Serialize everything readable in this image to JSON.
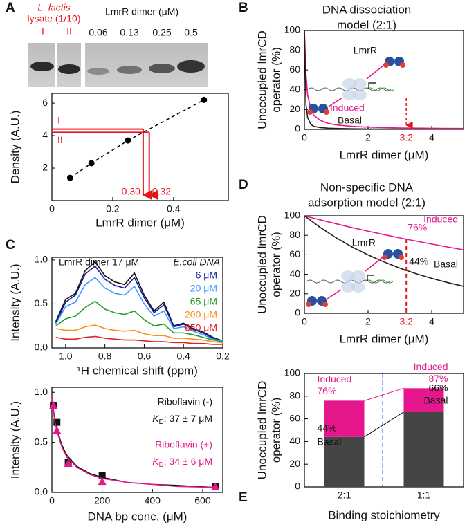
{
  "gel": {
    "sample_label": [
      "L. lactis",
      "lysate (1/10)"
    ],
    "lanes": [
      "I",
      "II"
    ],
    "title": "LmrR dimer (μM)",
    "concentrations": [
      "0.06",
      "0.13",
      "0.25",
      "0.5"
    ]
  },
  "chart_data": [
    {
      "panel": "A",
      "type": "scatter",
      "x": [
        0.06,
        0.13,
        0.25,
        0.5
      ],
      "values": [
        1.4,
        2.3,
        3.7,
        6.2
      ],
      "color": "#000000",
      "fit_line": true,
      "xlim": [
        0,
        0.58
      ],
      "ylim": [
        0,
        6.6
      ],
      "xticks": [
        0,
        0.2,
        0.4
      ],
      "yticks": [
        2,
        4,
        6
      ],
      "x_label": "LmrR dimer (μM)",
      "y_label": "Density (A.U.)",
      "reference_color": "#e8141c",
      "reference_lines": [
        {
          "label": "I",
          "value": 4.4,
          "x_value": 0.3,
          "x_label": "0.30"
        },
        {
          "label": "II",
          "value": 4.2,
          "x_value": 0.32,
          "x_label": "0.32"
        }
      ]
    },
    {
      "panel": "B",
      "type": "line",
      "title": [
        "DNA dissociation",
        "model (2:1)"
      ],
      "x": [
        0,
        0.05,
        0.1,
        0.2,
        0.3,
        0.5,
        0.75,
        1,
        1.5,
        2,
        3,
        4,
        5
      ],
      "series": [
        {
          "name": "Induced",
          "color": "#e6168c",
          "values": [
            100,
            55,
            35,
            20,
            14,
            9,
            6,
            4.5,
            3,
            2.2,
            1.4,
            1.1,
            0.9
          ]
        },
        {
          "name": "Basal",
          "color": "#2b1a0e",
          "values": [
            100,
            25,
            12,
            5,
            3,
            1.8,
            1.2,
            0.9,
            0.6,
            0.4,
            0.3,
            0.2,
            0.2
          ]
        }
      ],
      "xlim": [
        0,
        5
      ],
      "ylim": [
        0,
        100
      ],
      "xticks": [
        0,
        2,
        4
      ],
      "yticks": [
        0,
        20,
        40,
        60,
        80,
        100
      ],
      "x_label": "LmrR dimer (μM)",
      "y_label": [
        "Unoccupied lmrCD",
        "operator (%)"
      ],
      "marker_x": {
        "value": 3.2,
        "label": "3.2"
      },
      "marker_color": "#e8141c",
      "inset_label": "LmrR"
    },
    {
      "panel": "D",
      "type": "line",
      "title": [
        "Non-specific DNA",
        "adsorption model (2:1)"
      ],
      "x": [
        0,
        0.5,
        1,
        1.5,
        2,
        2.5,
        3,
        3.5,
        4,
        4.5,
        5
      ],
      "series": [
        {
          "name": "Induced",
          "color": "#e6168c",
          "values": [
            100,
            95.8,
            91.8,
            87.9,
            84.2,
            80.7,
            77.3,
            74.1,
            71,
            68,
            65.1
          ],
          "marker_value": 76,
          "marker_label": "76%"
        },
        {
          "name": "Basal",
          "color": "#2b1a0e",
          "values": [
            100,
            88,
            77.4,
            68,
            59.9,
            52.7,
            46.3,
            40.7,
            35.8,
            31.5,
            27.7
          ],
          "marker_value": 44,
          "marker_label": "44%"
        }
      ],
      "xlim": [
        0,
        5
      ],
      "ylim": [
        0,
        100
      ],
      "xticks": [
        0,
        2,
        4
      ],
      "yticks": [
        0,
        20,
        40,
        60,
        80,
        100
      ],
      "x_label": "LmrR dimer (μM)",
      "y_label": [
        "Unoccupied lmrCD",
        "operator (%)"
      ],
      "marker_x": {
        "value": 3.2,
        "label": "3.2"
      },
      "marker_color": "#e8141c",
      "inset_label": "LmrR"
    },
    {
      "panel": "C",
      "type": "line",
      "x_reversed": true,
      "heading": "LmrR dimer 17 μM",
      "legend_title": "E.coli DNA",
      "x": [
        1.05,
        1.0,
        0.95,
        0.9,
        0.85,
        0.8,
        0.75,
        0.7,
        0.65,
        0.6,
        0.55,
        0.5,
        0.45,
        0.4,
        0.35,
        0.3,
        0.25,
        0.2
      ],
      "series": [
        {
          "color": "#111111",
          "values": [
            0.3,
            0.55,
            0.62,
            0.88,
            0.98,
            0.82,
            0.75,
            0.72,
            0.85,
            0.6,
            0.42,
            0.52,
            0.25,
            0.28,
            0.22,
            0.18,
            0.12,
            0.08
          ]
        },
        {
          "name": "6 μM",
          "color": "#1a1aa0",
          "values": [
            0.28,
            0.52,
            0.6,
            0.84,
            0.93,
            0.78,
            0.71,
            0.68,
            0.8,
            0.57,
            0.4,
            0.49,
            0.24,
            0.27,
            0.21,
            0.17,
            0.11,
            0.08
          ]
        },
        {
          "name": "20 μM",
          "color": "#3a9cff",
          "values": [
            0.27,
            0.47,
            0.52,
            0.72,
            0.8,
            0.68,
            0.62,
            0.6,
            0.7,
            0.5,
            0.36,
            0.42,
            0.22,
            0.24,
            0.19,
            0.15,
            0.1,
            0.08
          ]
        },
        {
          "name": "65 μM",
          "color": "#22a02a",
          "values": [
            0.25,
            0.33,
            0.36,
            0.46,
            0.53,
            0.44,
            0.4,
            0.38,
            0.42,
            0.32,
            0.25,
            0.27,
            0.17,
            0.17,
            0.15,
            0.12,
            0.09,
            0.07
          ]
        },
        {
          "name": "200 μM",
          "color": "#ff8c1a",
          "values": [
            0.22,
            0.2,
            0.2,
            0.24,
            0.26,
            0.22,
            0.2,
            0.19,
            0.2,
            0.16,
            0.14,
            0.14,
            0.11,
            0.11,
            0.1,
            0.09,
            0.07,
            0.06
          ]
        },
        {
          "name": "650 μM",
          "color": "#e02020",
          "values": [
            0.12,
            0.1,
            0.1,
            0.12,
            0.13,
            0.11,
            0.1,
            0.09,
            0.09,
            0.08,
            0.07,
            0.07,
            0.06,
            0.06,
            0.05,
            0.05,
            0.04,
            0.04
          ]
        }
      ],
      "xlim": [
        0.2,
        1.07
      ],
      "ylim": [
        0,
        1.03
      ],
      "xticks": [
        {
          "value": 1,
          "label": "1.0"
        },
        0.8,
        0.6,
        0.4,
        0.2
      ],
      "yticks": [
        {
          "value": 0,
          "label": "0.0"
        },
        0.5,
        {
          "value": 1,
          "label": "1.0"
        }
      ],
      "x_label": "¹H chemical shift (ppm)",
      "y_label": "Intensity (A.U.)"
    },
    {
      "type": "scatter",
      "x": [
        6,
        20,
        65,
        200,
        650
      ],
      "fit_x": [
        0,
        10,
        20,
        40,
        60,
        100,
        150,
        200,
        300,
        400,
        500,
        650
      ],
      "series": [
        {
          "name": "Riboflavin (-)",
          "kd_label": {
            "symbol": "K",
            "subscript": "D",
            "text": ": 37 ± 7 μM"
          },
          "marker": "square",
          "color": "#111111",
          "values": [
            0.87,
            0.7,
            0.3,
            0.17,
            0.06
          ],
          "fit_values": [
            0.95,
            0.75,
            0.63,
            0.47,
            0.37,
            0.26,
            0.19,
            0.15,
            0.1,
            0.08,
            0.07,
            0.05
          ]
        },
        {
          "name": "Riboflavin (+)",
          "kd_label": {
            "symbol": "K",
            "subscript": "D",
            "text": ": 34 ± 6 μM"
          },
          "marker": "triangle",
          "color": "#e6168c",
          "values": [
            0.87,
            0.62,
            0.29,
            0.11,
            0.06
          ],
          "fit_values": [
            0.95,
            0.73,
            0.61,
            0.45,
            0.35,
            0.25,
            0.18,
            0.14,
            0.1,
            0.08,
            0.06,
            0.05
          ]
        }
      ],
      "xlim": [
        0,
        680
      ],
      "ylim": [
        0,
        1.05
      ],
      "xticks": [
        0,
        200,
        400,
        600
      ],
      "yticks": [
        {
          "value": 0,
          "label": "0.0"
        },
        0.5,
        {
          "value": 1,
          "label": "1.0"
        }
      ],
      "x_label": "DNA bp conc. (μM)",
      "y_label": "Intensity (A.U.)"
    },
    {
      "panel": "E",
      "type": "bar",
      "stacked": true,
      "categories": [
        "2:1",
        "1:1"
      ],
      "series": [
        {
          "name": "Basal",
          "color": "#454545",
          "values": [
            44,
            66
          ],
          "value_labels": [
            "44%",
            "66%"
          ]
        },
        {
          "name": "Induced",
          "color": "#e6168c",
          "values": [
            32,
            21
          ]
        }
      ],
      "totals": [
        76,
        87
      ],
      "total_labels": [
        "76%",
        "87%"
      ],
      "divider_color": "#6a9ef0",
      "ylim": [
        0,
        100
      ],
      "yticks": [
        0,
        20,
        40,
        60,
        80,
        100
      ],
      "x_label": "Binding stoichiometry",
      "y_label": [
        "Unoccupied lmrCD",
        "operator (%)"
      ]
    }
  ]
}
